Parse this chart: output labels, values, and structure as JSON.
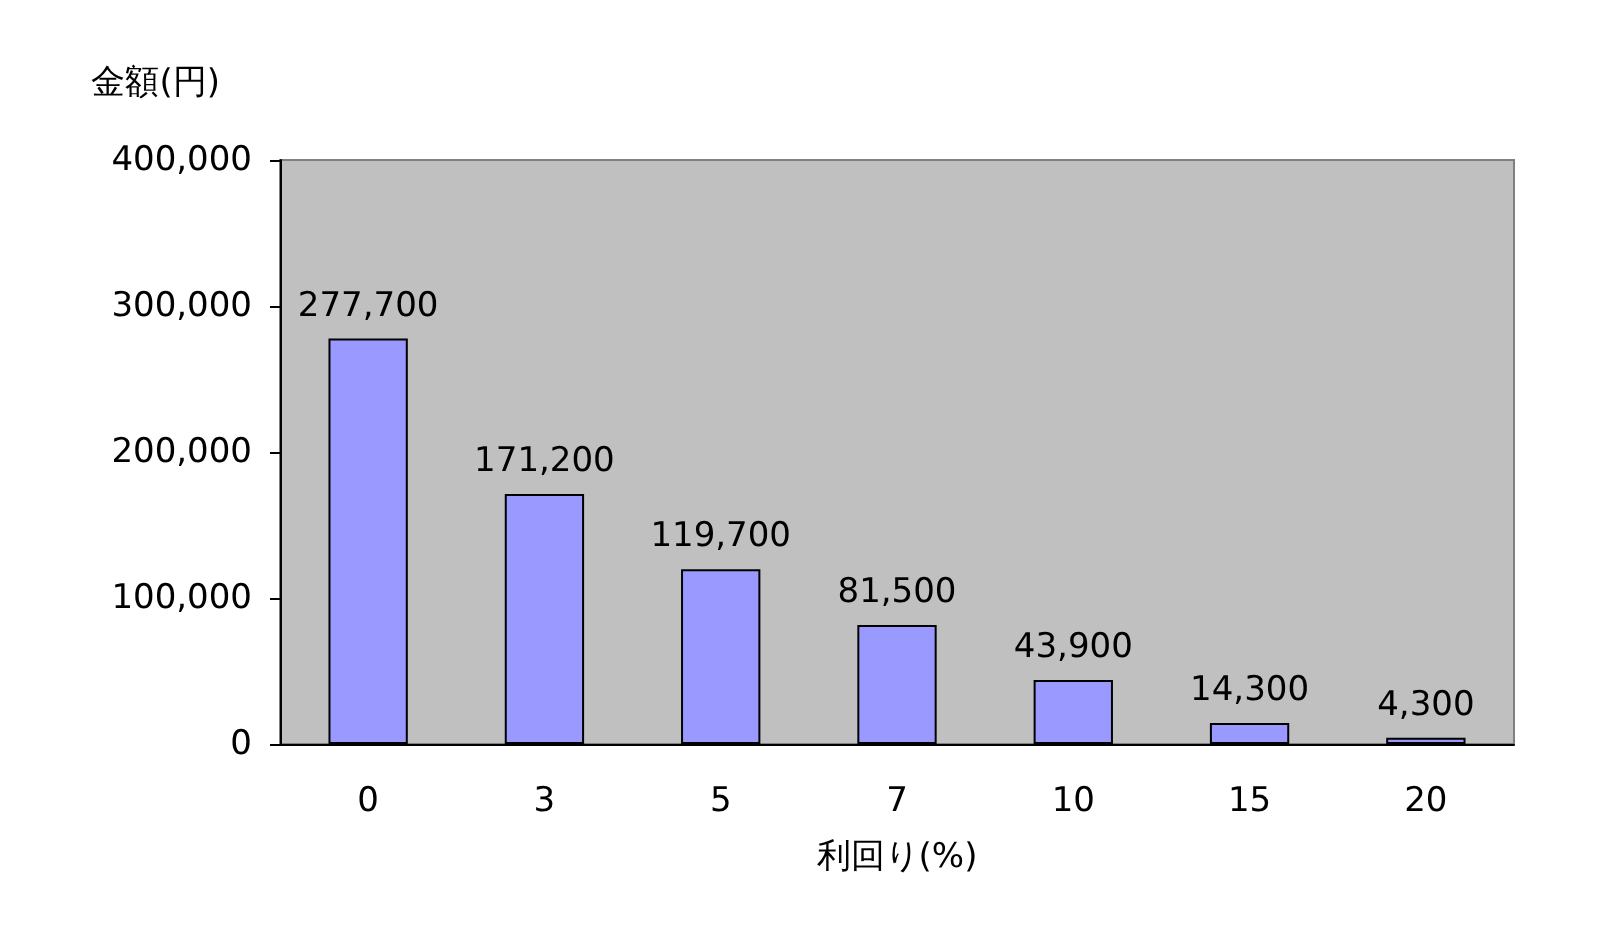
{
  "chart_data": {
    "type": "bar",
    "xlabel": "利回り(%)",
    "ylabel": "金額(円)",
    "categories": [
      "0",
      "3",
      "5",
      "7",
      "10",
      "15",
      "20"
    ],
    "values": [
      277700,
      171200,
      119700,
      81500,
      43900,
      14300,
      4300
    ],
    "value_labels": [
      "277,700",
      "171,200",
      "119,700",
      "81,500",
      "43,900",
      "14,300",
      "4,300"
    ],
    "color": "#9999ff",
    "ylim": [
      0,
      400000
    ],
    "yticks": [
      0,
      {
        "value": 100000,
        "label": "100,000"
      },
      {
        "value": 200000,
        "label": "200,000"
      },
      {
        "value": 300000,
        "label": "300,000"
      },
      {
        "value": 400000,
        "label": "400,000"
      }
    ]
  }
}
